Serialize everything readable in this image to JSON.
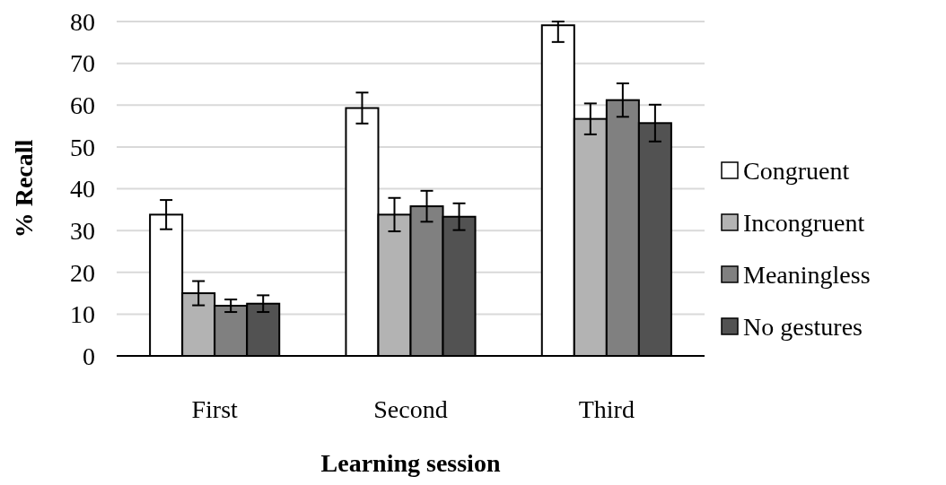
{
  "chart_data": {
    "type": "bar",
    "xlabel": "Learning session",
    "ylabel": "% Recall",
    "categories": [
      "First",
      "Second",
      "Third"
    ],
    "series": [
      {
        "name": "Congruent",
        "color": "#ffffff",
        "values": [
          33.8,
          59.3,
          79.1
        ],
        "errors": [
          3.5,
          3.7,
          [
            75.1,
            80
          ]
        ]
      },
      {
        "name": "Incongruent",
        "color": "#b3b3b3",
        "values": [
          15.0,
          33.8,
          56.7
        ],
        "errors": [
          2.9,
          4,
          3.7
        ]
      },
      {
        "name": "Meaningless",
        "color": "#808080",
        "values": [
          12.0,
          35.8,
          61.2
        ],
        "errors": [
          1.5,
          3.7,
          4
        ]
      },
      {
        "name": "No gestures",
        "color": "#525252",
        "values": [
          12.5,
          33.3,
          55.7
        ],
        "errors": [
          2,
          3.2,
          4.4
        ]
      }
    ],
    "ylim": [
      0,
      80
    ],
    "yticks": [
      0,
      10,
      20,
      30,
      40,
      50,
      60,
      70,
      80
    ],
    "grid": "y",
    "legend": "right"
  }
}
